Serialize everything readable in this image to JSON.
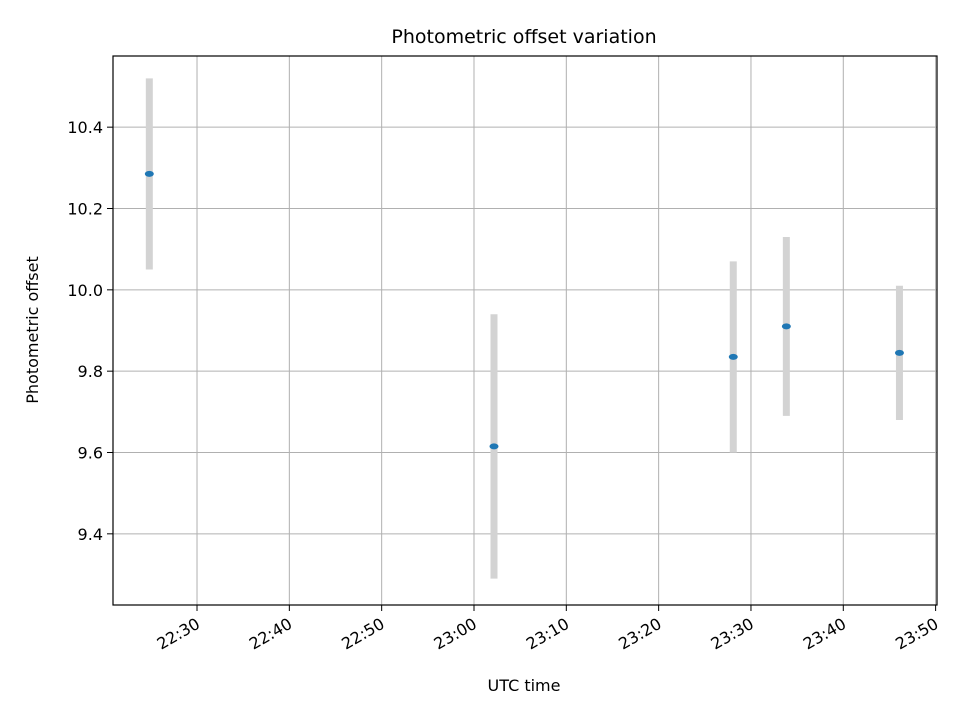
{
  "chart_data": {
    "type": "scatter",
    "title": "Photometric offset variation",
    "xlabel": "UTC time",
    "ylabel": "Photometric offset",
    "x_ticks": [
      "22:30",
      "22:40",
      "22:50",
      "23:00",
      "23:10",
      "23:20",
      "23:30",
      "23:40",
      "23:50"
    ],
    "y_ticks": [
      "9.4",
      "9.6",
      "9.8",
      "10.0",
      "10.2",
      "10.4"
    ],
    "xlim": [
      "22:20:54",
      "23:50:09"
    ],
    "ylim": [
      9.225,
      10.575
    ],
    "grid": true,
    "points": [
      {
        "x": "22:24:50",
        "y": 10.285,
        "err": 0.235
      },
      {
        "x": "23:02:10",
        "y": 9.615,
        "err": 0.325
      },
      {
        "x": "23:28:05",
        "y": 9.835,
        "err": 0.235
      },
      {
        "x": "23:33:50",
        "y": 9.91,
        "err": 0.22
      },
      {
        "x": "23:46:05",
        "y": 9.845,
        "err": 0.165
      }
    ],
    "marker_color": "#1f77b4",
    "errorbar_color": "#d3d3d3"
  }
}
